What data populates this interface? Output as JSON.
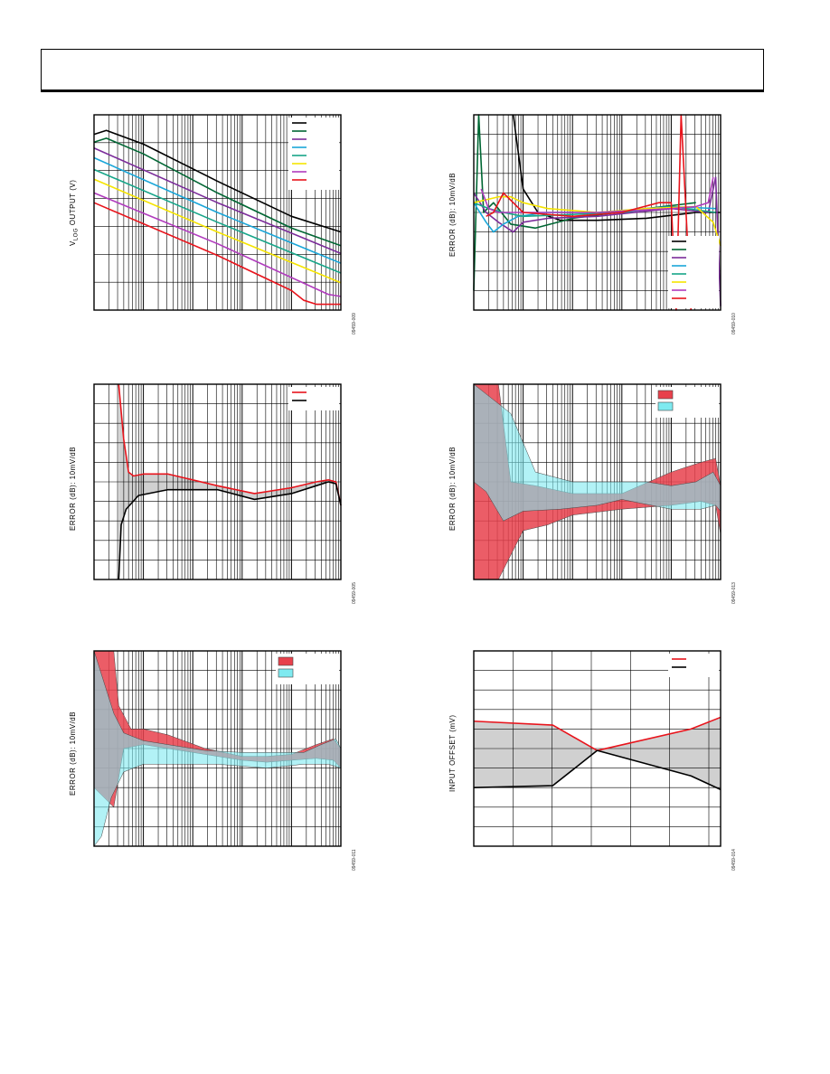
{
  "chart_data": [
    {
      "id": "p1",
      "type": "line",
      "ylabel": "V",
      "ylabel_sub": "LOG",
      "ylabel_rest": " OUTPUT (V)",
      "code": "09459-009",
      "xscale": "log",
      "xlim": [
        0,
        1
      ],
      "ylim": [
        0,
        1
      ],
      "legend": "top-right",
      "grid": true,
      "series": [
        {
          "color": "#000000",
          "x": [
            0,
            0.05,
            0.2,
            0.5,
            0.8,
            1.0
          ],
          "y": [
            0.9,
            0.92,
            0.85,
            0.66,
            0.48,
            0.4
          ]
        },
        {
          "color": "#006633",
          "x": [
            0,
            0.05,
            0.2,
            0.5,
            0.8,
            1.0
          ],
          "y": [
            0.86,
            0.88,
            0.8,
            0.6,
            0.42,
            0.33
          ]
        },
        {
          "color": "#7b2c9a",
          "x": [
            0,
            0.5,
            1.0
          ],
          "y": [
            0.83,
            0.55,
            0.29
          ]
        },
        {
          "color": "#1aa6d8",
          "x": [
            0,
            0.5,
            1.0
          ],
          "y": [
            0.78,
            0.5,
            0.24
          ]
        },
        {
          "color": "#17a589",
          "x": [
            0,
            0.5,
            1.0
          ],
          "y": [
            0.72,
            0.45,
            0.19
          ]
        },
        {
          "color": "#f5e400",
          "x": [
            0,
            0.5,
            1.0
          ],
          "y": [
            0.67,
            0.4,
            0.14
          ]
        },
        {
          "color": "#b03bbd",
          "x": [
            0,
            0.5,
            0.95,
            1.0
          ],
          "y": [
            0.6,
            0.34,
            0.08,
            0.07
          ]
        },
        {
          "color": "#e8141c",
          "x": [
            0,
            0.5,
            0.8,
            0.85,
            0.9,
            1.0
          ],
          "y": [
            0.55,
            0.28,
            0.1,
            0.05,
            0.03,
            0.03
          ]
        }
      ]
    },
    {
      "id": "p2",
      "type": "line",
      "ylabel": "ERROR (dB): 10mV/dB",
      "code": "09459-010",
      "xscale": "log",
      "xlim": [
        0,
        1
      ],
      "ylim": [
        0,
        1
      ],
      "legend": "bottom-right",
      "grid": true,
      "series": [
        {
          "color": "#000000",
          "x": [
            0.16,
            0.2,
            0.26,
            0.35,
            0.5,
            0.7,
            0.9,
            1.0
          ],
          "y": [
            1.0,
            0.62,
            0.5,
            0.46,
            0.46,
            0.47,
            0.5,
            0.5
          ]
        },
        {
          "color": "#006633",
          "x": [
            0,
            0.02,
            0.04,
            0.08,
            0.15,
            0.25,
            0.4,
            0.7,
            0.9
          ],
          "y": [
            0.1,
            1.0,
            0.5,
            0.55,
            0.44,
            0.42,
            0.47,
            0.52,
            0.55
          ]
        },
        {
          "color": "#7b2c9a",
          "x": [
            0,
            0.05,
            0.1,
            0.16,
            0.2,
            0.3,
            0.5,
            0.8,
            0.95,
            0.98,
            1.0
          ],
          "y": [
            0.6,
            0.5,
            0.45,
            0.4,
            0.45,
            0.47,
            0.48,
            0.52,
            0.5,
            0.68,
            0.02
          ]
        },
        {
          "color": "#1aa6d8",
          "x": [
            0,
            0.05,
            0.08,
            0.12,
            0.18,
            0.3,
            0.5,
            0.8,
            0.98
          ],
          "y": [
            0.55,
            0.45,
            0.4,
            0.44,
            0.48,
            0.5,
            0.5,
            0.53,
            0.52
          ]
        },
        {
          "color": "#17a589",
          "x": [
            0,
            0.06,
            0.12,
            0.2,
            0.4,
            0.6,
            0.8,
            0.98
          ],
          "y": [
            0.55,
            0.52,
            0.5,
            0.48,
            0.49,
            0.5,
            0.53,
            0.5
          ]
        },
        {
          "color": "#f5e400",
          "x": [
            0,
            0.1,
            0.15,
            0.2,
            0.3,
            0.5,
            0.7,
            0.9,
            0.97,
            1.0
          ],
          "y": [
            0.55,
            0.58,
            0.58,
            0.55,
            0.52,
            0.5,
            0.52,
            0.53,
            0.45,
            0.33
          ]
        },
        {
          "color": "#b03bbd",
          "x": [
            0.03,
            0.06,
            0.1,
            0.2,
            0.5,
            0.8,
            0.9,
            0.95,
            0.97
          ],
          "y": [
            0.62,
            0.52,
            0.5,
            0.5,
            0.5,
            0.52,
            0.53,
            0.55,
            0.68
          ]
        },
        {
          "color": "#e8141c",
          "x": [
            0.05,
            0.08,
            0.12,
            0.2,
            0.4,
            0.6,
            0.75,
            0.8,
            0.82,
            0.84,
            0.86,
            0.88
          ],
          "y": [
            0.48,
            0.5,
            0.6,
            0.5,
            0.48,
            0.5,
            0.55,
            0.55,
            0.0,
            1.0,
            0.5,
            0.0
          ]
        }
      ]
    },
    {
      "id": "p3",
      "type": "area",
      "ylabel": "ERROR (dB): 10mV/dB",
      "code": "09459-005",
      "xscale": "log",
      "xlim": [
        0,
        1
      ],
      "ylim": [
        0,
        1
      ],
      "legend": "top-right",
      "grid": true,
      "band_color": "#c8c8c8",
      "series": [
        {
          "color": "#e8141c",
          "x": [
            0.1,
            0.12,
            0.14,
            0.16,
            0.2,
            0.3,
            0.5,
            0.65,
            0.8,
            0.9,
            0.95,
            0.98,
            1.0
          ],
          "y": [
            1.0,
            0.72,
            0.55,
            0.53,
            0.54,
            0.54,
            0.48,
            0.44,
            0.47,
            0.5,
            0.51,
            0.5,
            0.38
          ]
        },
        {
          "color": "#000000",
          "x": [
            0.1,
            0.11,
            0.13,
            0.18,
            0.3,
            0.5,
            0.65,
            0.8,
            0.9,
            0.95,
            0.98,
            1.0
          ],
          "y": [
            0.0,
            0.28,
            0.36,
            0.43,
            0.46,
            0.46,
            0.41,
            0.44,
            0.48,
            0.5,
            0.49,
            0.38
          ]
        }
      ]
    },
    {
      "id": "p4",
      "type": "area",
      "ylabel": "ERROR (dB): 10mV/dB",
      "code": "09459-013",
      "xscale": "log",
      "xlim": [
        0,
        1
      ],
      "ylim": [
        0,
        1
      ],
      "legend": "top-right",
      "grid": true,
      "series": [
        {
          "color": "#e8414c",
          "band_upper": {
            "x": [
              0,
              0.1,
              0.15,
              0.25,
              0.4,
              0.6,
              0.8,
              0.92,
              0.98,
              1.0
            ],
            "y": [
              1.0,
              1.0,
              0.5,
              0.48,
              0.44,
              0.44,
              0.55,
              0.6,
              0.62,
              0.48
            ]
          },
          "band_lower": {
            "x": [
              0,
              0.1,
              0.2,
              0.3,
              0.4,
              0.6,
              0.8,
              0.92,
              0.98,
              1.0
            ],
            "y": [
              0.0,
              0.0,
              0.25,
              0.28,
              0.33,
              0.36,
              0.38,
              0.4,
              0.38,
              0.23
            ]
          }
        },
        {
          "color": "#7eeaf0",
          "band_upper": {
            "x": [
              0,
              0.15,
              0.25,
              0.4,
              0.55,
              0.7,
              0.8,
              0.9,
              0.97,
              1.0
            ],
            "y": [
              1.0,
              0.85,
              0.55,
              0.5,
              0.5,
              0.5,
              0.48,
              0.5,
              0.55,
              0.48
            ]
          },
          "band_lower": {
            "x": [
              0,
              0.05,
              0.12,
              0.2,
              0.35,
              0.5,
              0.6,
              0.8,
              0.92,
              0.98,
              1.0
            ],
            "y": [
              0.5,
              0.45,
              0.3,
              0.35,
              0.36,
              0.38,
              0.41,
              0.36,
              0.36,
              0.38,
              0.35
            ]
          }
        }
      ]
    },
    {
      "id": "p5",
      "type": "area",
      "ylabel": "ERROR (dB): 10mV/dB",
      "code": "09459-011",
      "xscale": "log",
      "xlim": [
        0,
        1
      ],
      "ylim": [
        0,
        1
      ],
      "legend": "top-right",
      "grid": true,
      "series": [
        {
          "color": "#e8414c",
          "band_upper": {
            "x": [
              0,
              0.08,
              0.1,
              0.15,
              0.2,
              0.3,
              0.45,
              0.6,
              0.7,
              0.8,
              0.9,
              0.97,
              1.0
            ],
            "y": [
              1.0,
              1.0,
              0.72,
              0.6,
              0.6,
              0.57,
              0.5,
              0.46,
              0.46,
              0.47,
              0.52,
              0.55,
              0.5
            ]
          },
          "band_lower": {
            "x": [
              0,
              0.08,
              0.12,
              0.2,
              0.3,
              0.45,
              0.6,
              0.7,
              0.8,
              0.9,
              0.97,
              1.0
            ],
            "y": [
              0.3,
              0.2,
              0.5,
              0.52,
              0.5,
              0.47,
              0.44,
              0.43,
              0.44,
              0.45,
              0.44,
              0.4
            ]
          }
        },
        {
          "color": "#7eeaf0",
          "band_upper": {
            "x": [
              0,
              0.08,
              0.12,
              0.2,
              0.3,
              0.45,
              0.6,
              0.75,
              0.85,
              0.92,
              0.98,
              1.0
            ],
            "y": [
              1.0,
              0.68,
              0.58,
              0.54,
              0.52,
              0.49,
              0.48,
              0.48,
              0.48,
              0.52,
              0.55,
              0.5
            ]
          },
          "band_lower": {
            "x": [
              0,
              0.03,
              0.07,
              0.12,
              0.2,
              0.3,
              0.5,
              0.7,
              0.85,
              0.95,
              1.0
            ],
            "y": [
              0.0,
              0.05,
              0.25,
              0.38,
              0.42,
              0.42,
              0.42,
              0.4,
              0.42,
              0.42,
              0.4
            ]
          }
        }
      ]
    },
    {
      "id": "p6",
      "type": "area",
      "ylabel": "INPUT OFFSET (mV)",
      "code": "09459-014",
      "xscale": "linear",
      "xlim": [
        0,
        1
      ],
      "ylim": [
        0,
        1
      ],
      "legend": "top-right",
      "grid": true,
      "band_color": "#c8c8c8",
      "series": [
        {
          "color": "#e8141c",
          "x": [
            0,
            0.32,
            0.5,
            0.88,
            1.0
          ],
          "y": [
            0.64,
            0.62,
            0.49,
            0.6,
            0.66
          ]
        },
        {
          "color": "#000000",
          "x": [
            0,
            0.32,
            0.5,
            0.88,
            1.0
          ],
          "y": [
            0.3,
            0.31,
            0.49,
            0.36,
            0.29
          ]
        }
      ]
    }
  ]
}
